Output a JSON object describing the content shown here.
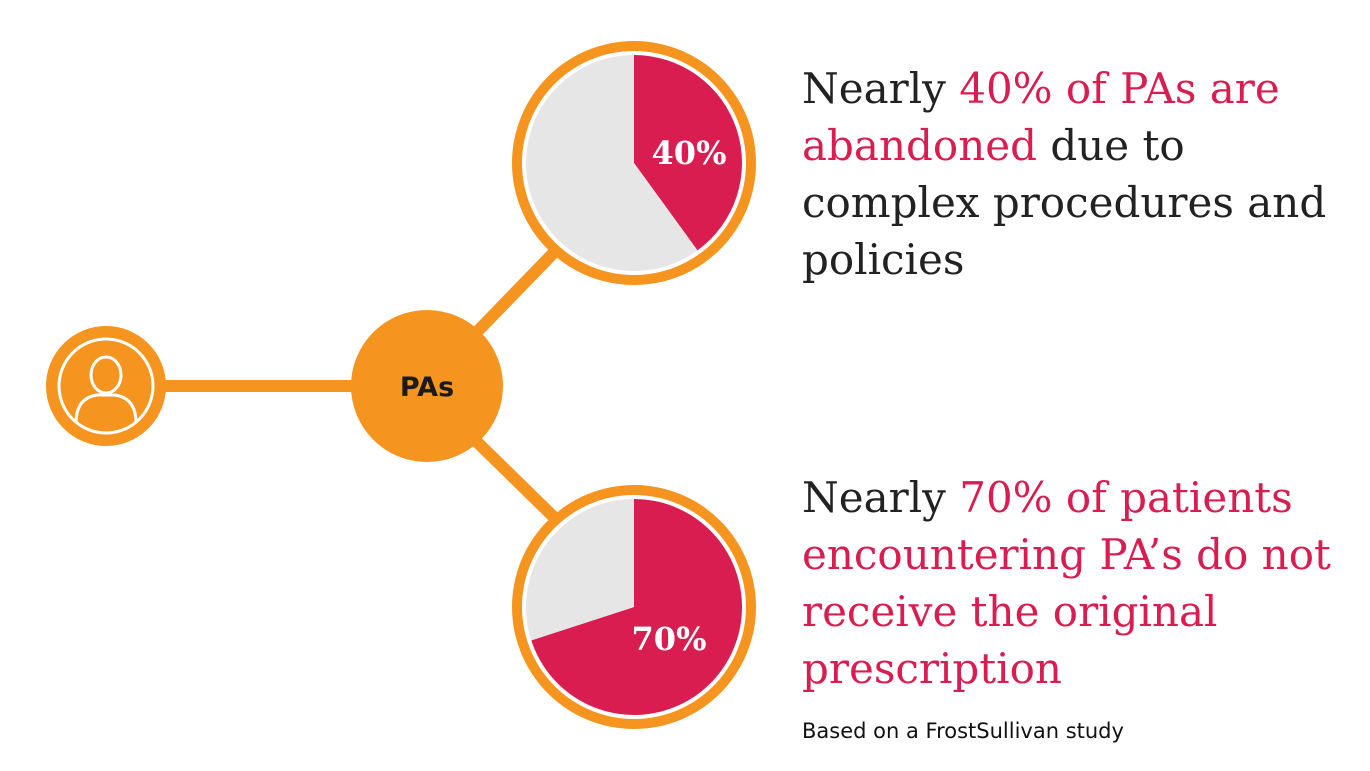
{
  "hub": {
    "label": "PAs",
    "icon": "user-icon"
  },
  "colors": {
    "orange": "#f5951f",
    "highlight": "#d91d50",
    "remainder": "#e6e6e6",
    "text": "#222222"
  },
  "statements": [
    {
      "prefix": "Nearly ",
      "highlight": "40% of PAs are abandoned",
      "suffix": " due to complex procedures and policies"
    },
    {
      "prefix": "Nearly ",
      "highlight": "70% of patients encountering PA’s do not receive the original prescription",
      "suffix": ""
    }
  ],
  "source": "Based on a FrostSullivan study",
  "chart_data": [
    {
      "type": "pie",
      "values": [
        40,
        60
      ],
      "label": "40%",
      "colors": [
        "#d91d50",
        "#e6e6e6"
      ]
    },
    {
      "type": "pie",
      "values": [
        70,
        30
      ],
      "label": "70%",
      "colors": [
        "#d91d50",
        "#e6e6e6"
      ]
    }
  ]
}
